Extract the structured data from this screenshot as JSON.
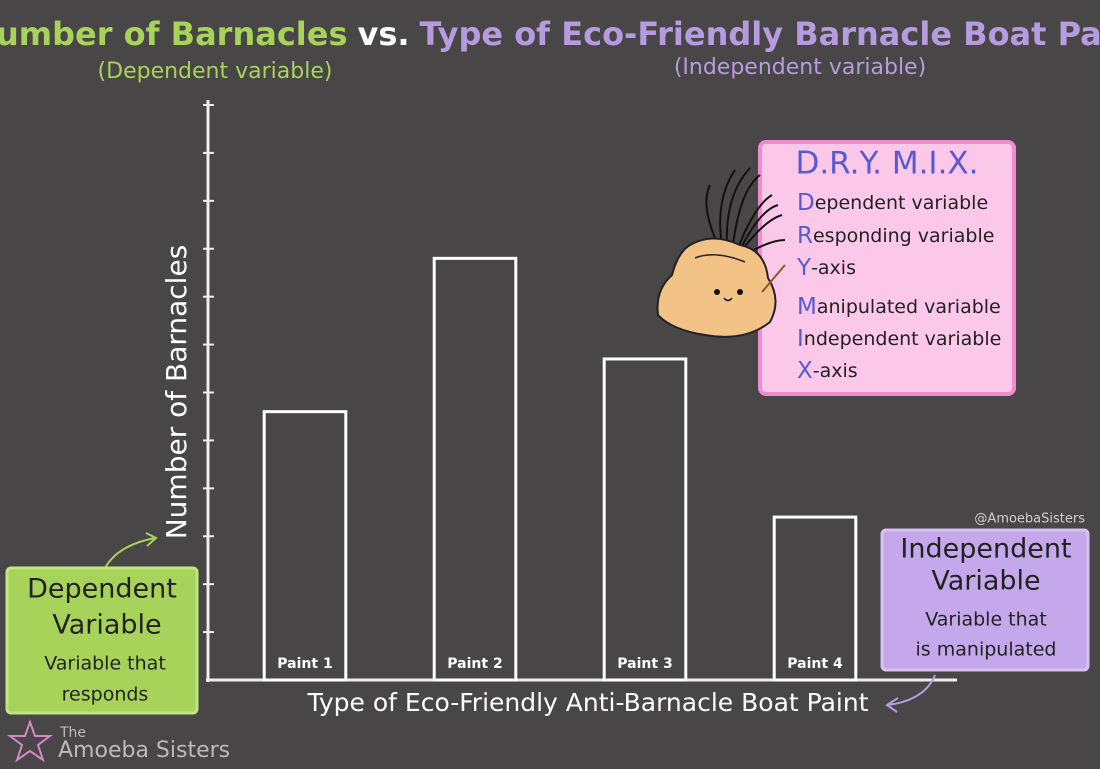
{
  "chart_data": {
    "type": "bar",
    "title_segments": [
      {
        "text": "Number of Barnacles",
        "color": "#a8d35a"
      },
      {
        "text": "vs.",
        "color": "#ffffff"
      },
      {
        "text": "Type of Eco-Friendly Barnacle Boat Paint",
        "color": "#b79be0"
      }
    ],
    "subtitle_left": "(Dependent variable)",
    "subtitle_right": "(Independent variable)",
    "ylabel": "Number of Barnacles",
    "xlabel": "Type of Eco-Friendly Anti-Barnacle Boat Paint",
    "categories": [
      "Paint 1",
      "Paint 2",
      "Paint 3",
      "Paint 4"
    ],
    "values": [
      5.6,
      8.8,
      6.7,
      3.4
    ],
    "color": "#ffffff",
    "ylim": [
      0,
      12
    ],
    "yticks": [
      1,
      2,
      3,
      4,
      5,
      6,
      7,
      8,
      9,
      10,
      11,
      12
    ]
  },
  "annotations": {
    "dependent_box": {
      "title": [
        "Dependent",
        "Variable"
      ],
      "text": [
        "Variable that",
        "responds"
      ]
    },
    "independent_box": {
      "title": [
        "Independent",
        "Variable"
      ],
      "text": [
        "Variable that",
        "is manipulated"
      ]
    },
    "dry_mix": {
      "title": "D.R.Y. M.I.X.",
      "items": [
        {
          "letter": "D",
          "rest": "ependent variable"
        },
        {
          "letter": "R",
          "rest": "esponding variable"
        },
        {
          "letter": "Y",
          "rest": "-axis"
        },
        {
          "letter": "M",
          "rest": "anipulated variable"
        },
        {
          "letter": "I",
          "rest": "ndependent variable"
        },
        {
          "letter": "X",
          "rest": "-axis"
        }
      ]
    },
    "handle": "@AmoebaSisters",
    "logo": [
      "The",
      "Amoeba Sisters"
    ]
  }
}
